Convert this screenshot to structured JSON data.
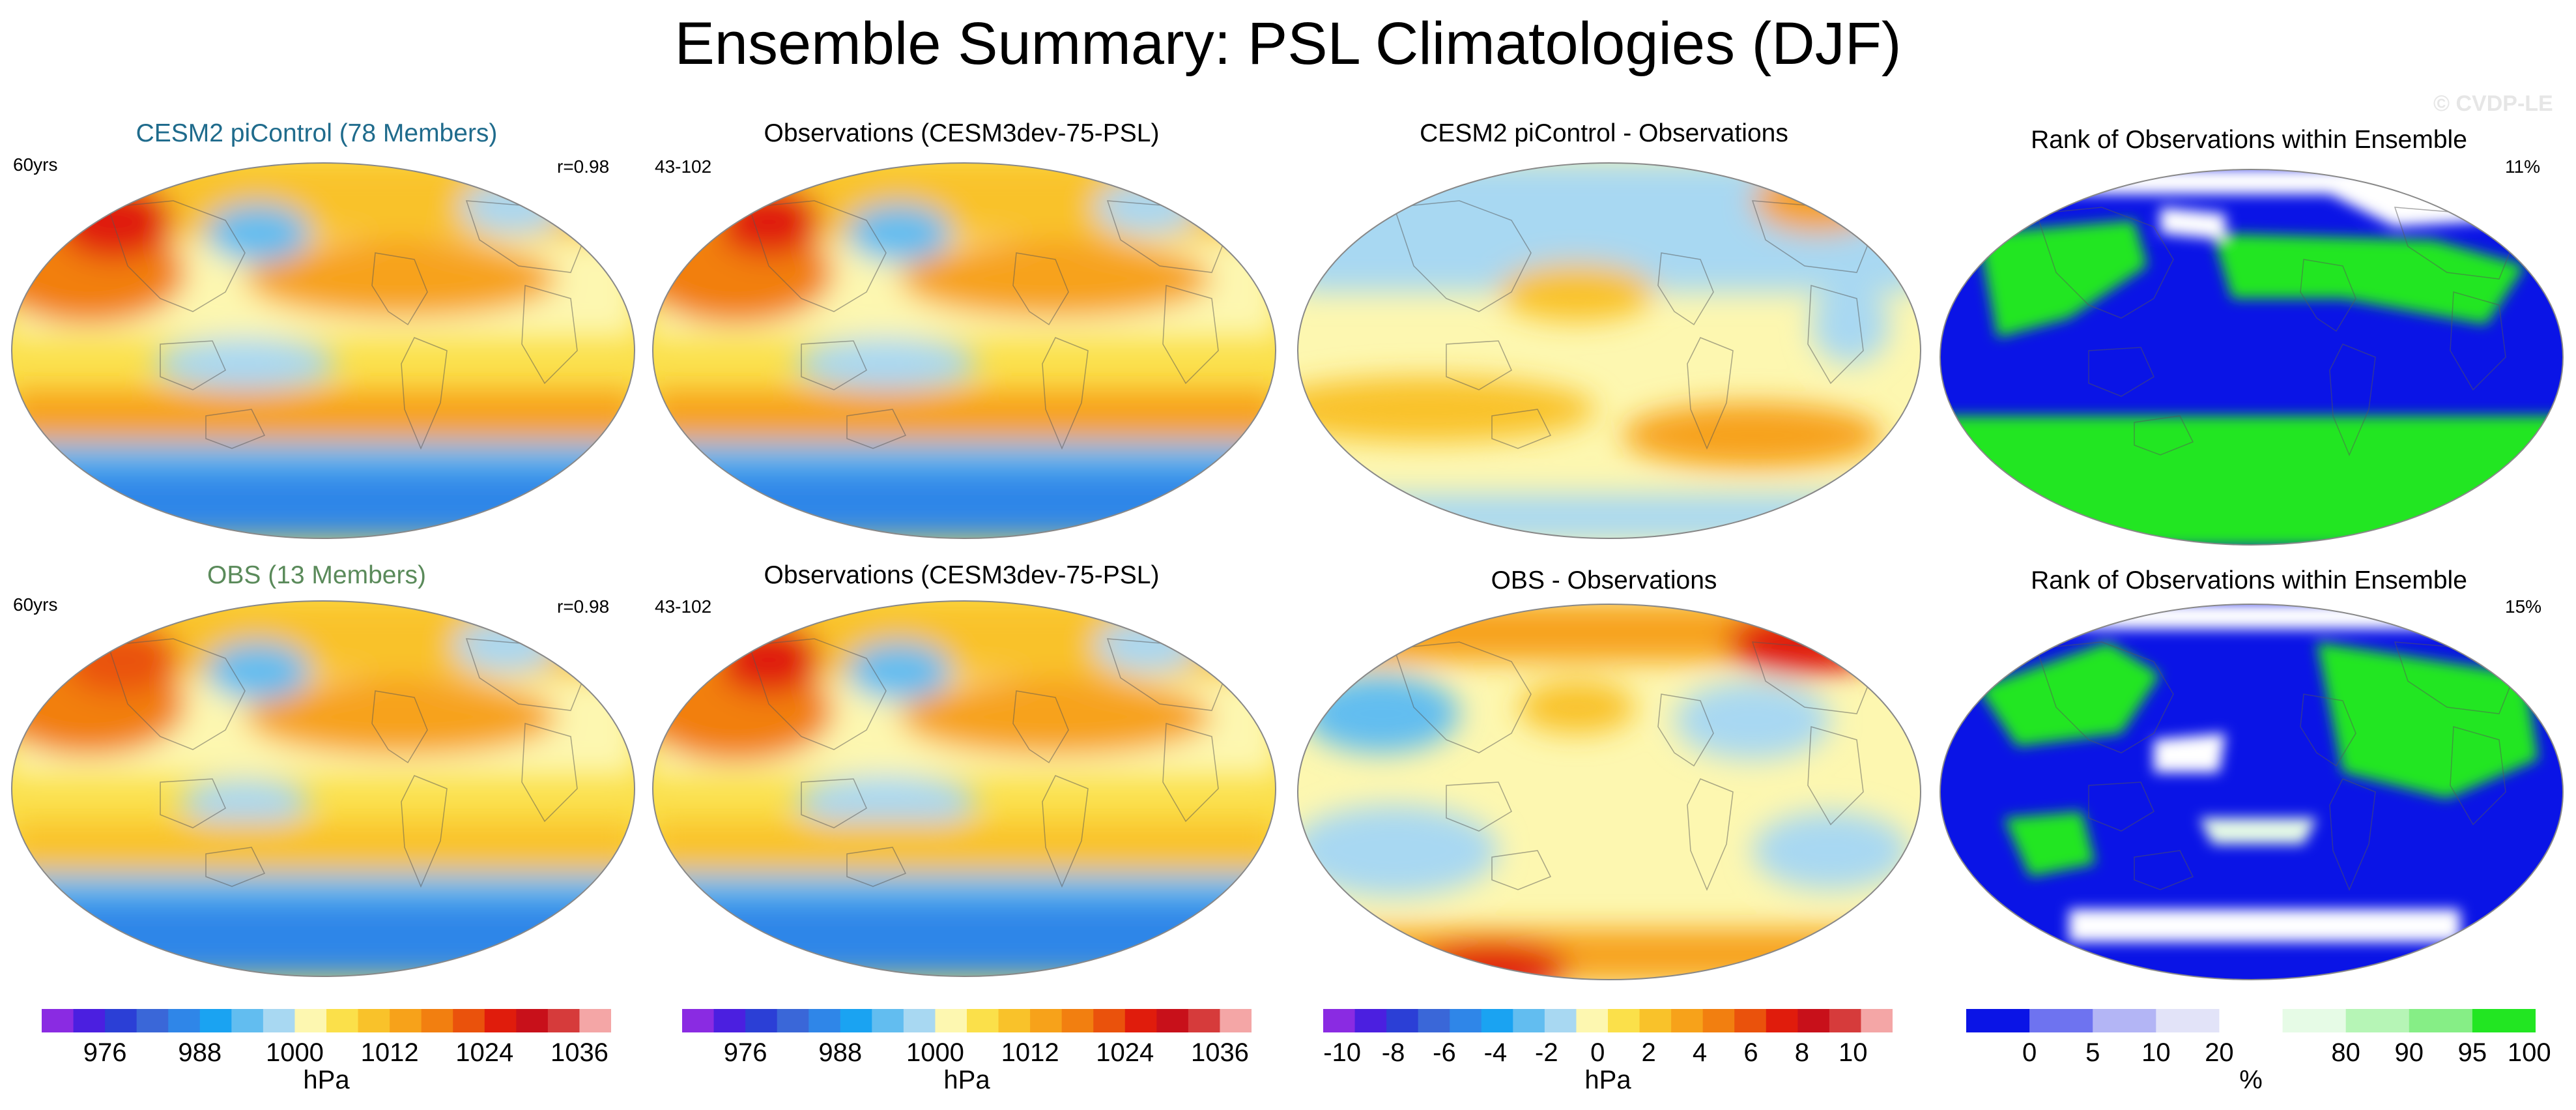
{
  "title": "Ensemble Summary: PSL Climatologies (DJF)",
  "watermark": "© CVDP-LE",
  "colors": {
    "model_title": "#1f6b8c",
    "obs_title": "#5a8a5a"
  },
  "panels": [
    {
      "id": "r1c1",
      "title": "CESM2 piControl (78 Members)",
      "title_color": "#1f6b8c",
      "left_text": "60yrs",
      "right_text": "r=0.98",
      "map": "model-psl-icon"
    },
    {
      "id": "r1c2",
      "title": "Observations (CESM3dev-75-PSL)",
      "title_color": "#000000",
      "left_text": "43-102",
      "right_text": "",
      "map": "obs-psl-icon"
    },
    {
      "id": "r1c3",
      "title": "CESM2 piControl - Observations",
      "title_color": "#000000",
      "left_text": "",
      "right_text": "",
      "map": "difference-icon"
    },
    {
      "id": "r1c4",
      "title": "Rank of Observations within Ensemble",
      "title_color": "#000000",
      "left_text": "",
      "right_text": "11%",
      "map": "rank-icon"
    },
    {
      "id": "r2c1",
      "title": "OBS (13 Members)",
      "title_color": "#5a8a5a",
      "left_text": "60yrs",
      "right_text": "r=0.98",
      "map": "model-psl-icon"
    },
    {
      "id": "r2c2",
      "title": "Observations (CESM3dev-75-PSL)",
      "title_color": "#000000",
      "left_text": "43-102",
      "right_text": "",
      "map": "obs-psl-icon"
    },
    {
      "id": "r2c3",
      "title": "OBS - Observations",
      "title_color": "#000000",
      "left_text": "",
      "right_text": "",
      "map": "difference-icon"
    },
    {
      "id": "r2c4",
      "title": "Rank of Observations within Ensemble",
      "title_color": "#000000",
      "left_text": "",
      "right_text": "15%",
      "map": "rank-icon"
    }
  ],
  "colorbars": [
    {
      "unit": "hPa",
      "ticks": [
        "976",
        "988",
        "1000",
        "1012",
        "1024",
        "1036"
      ],
      "colors": [
        "#8a2be2",
        "#4b1fe0",
        "#2b3fd6",
        "#3a67d8",
        "#2f86e8",
        "#1aa3f2",
        "#62bdf0",
        "#a8d8f2",
        "#fdf7b0",
        "#fbe04a",
        "#f9c22a",
        "#f7a21a",
        "#f27f10",
        "#ea520c",
        "#e01c0c",
        "#c8101a",
        "#d63b3b",
        "#f4a6a6"
      ]
    },
    {
      "unit": "hPa",
      "ticks": [
        "976",
        "988",
        "1000",
        "1012",
        "1024",
        "1036"
      ],
      "colors": [
        "#8a2be2",
        "#4b1fe0",
        "#2b3fd6",
        "#3a67d8",
        "#2f86e8",
        "#1aa3f2",
        "#62bdf0",
        "#a8d8f2",
        "#fdf7b0",
        "#fbe04a",
        "#f9c22a",
        "#f7a21a",
        "#f27f10",
        "#ea520c",
        "#e01c0c",
        "#c8101a",
        "#d63b3b",
        "#f4a6a6"
      ]
    },
    {
      "unit": "hPa",
      "ticks": [
        "-10",
        "-8",
        "-6",
        "-4",
        "-2",
        "0",
        "2",
        "4",
        "6",
        "8",
        "10"
      ],
      "colors": [
        "#8a2be2",
        "#4b1fe0",
        "#2b3fd6",
        "#3a67d8",
        "#2f86e8",
        "#1aa3f2",
        "#62bdf0",
        "#a8d8f2",
        "#fdf7b0",
        "#fbe04a",
        "#f9c22a",
        "#f7a21a",
        "#f27f10",
        "#ea520c",
        "#e01c0c",
        "#c8101a",
        "#d63b3b",
        "#f4a6a6"
      ]
    },
    {
      "unit": "%",
      "ticks": [
        "0",
        "5",
        "10",
        "20",
        "80",
        "90",
        "95",
        "100"
      ],
      "colors": [
        "#0a14e6",
        "#6e73f0",
        "#b3b5f5",
        "#e2e3f8",
        "#ffffff",
        "#e6fbe6",
        "#b6f5b6",
        "#86ee86",
        "#22e622"
      ]
    }
  ]
}
